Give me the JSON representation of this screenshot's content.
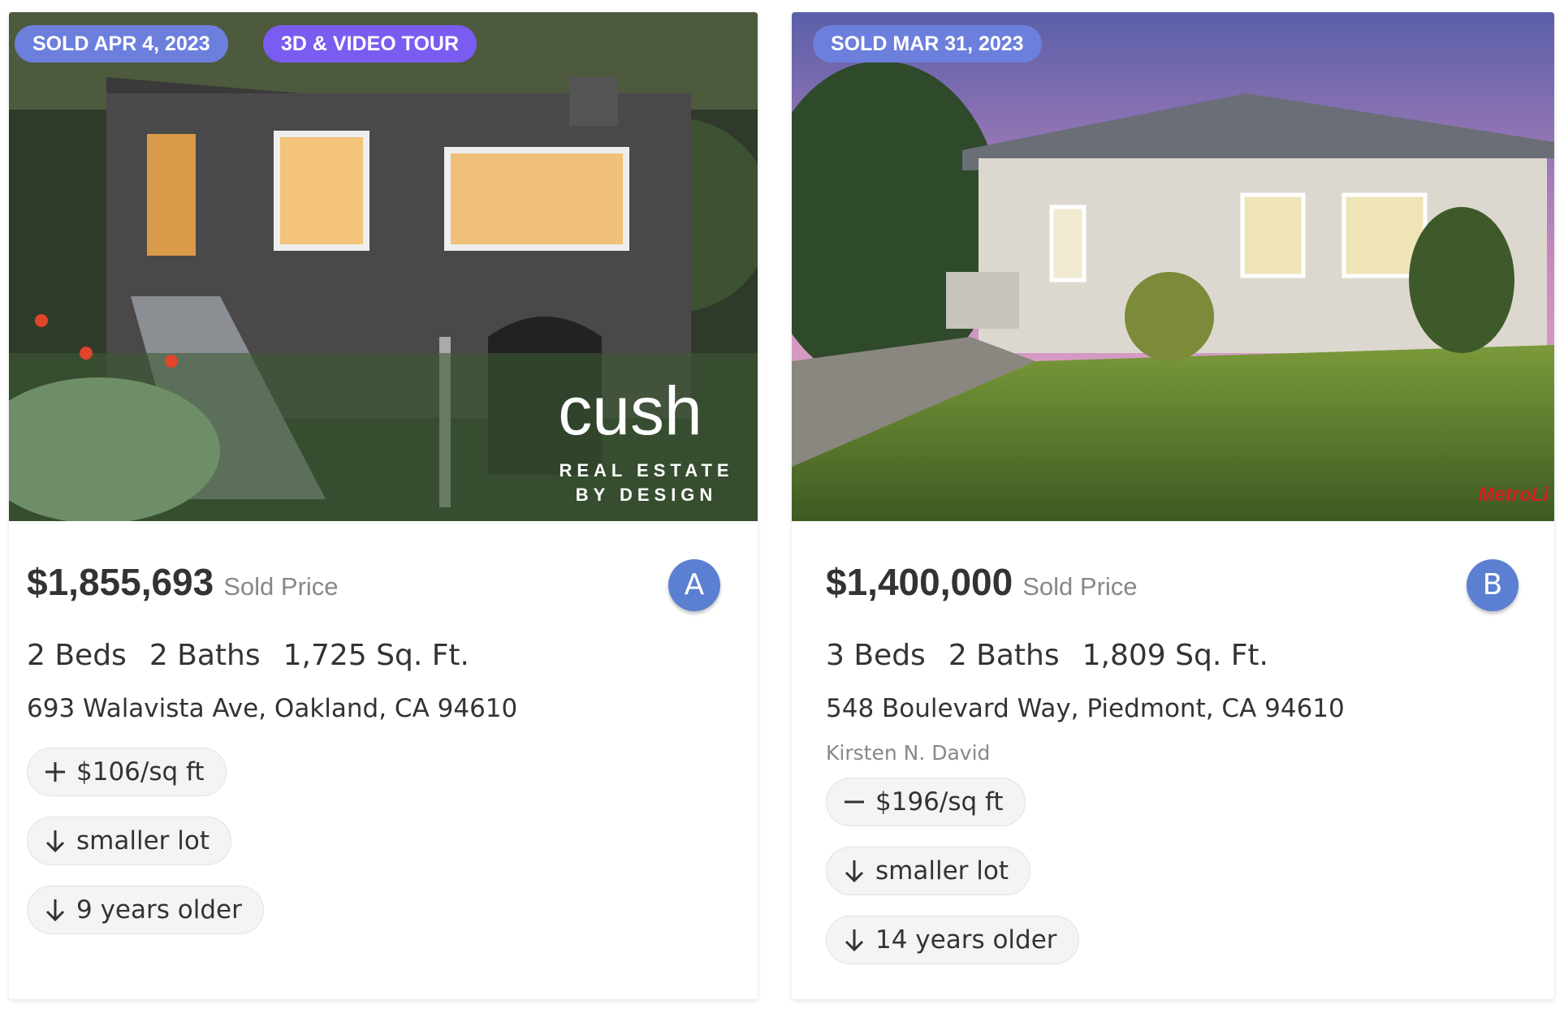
{
  "listings": [
    {
      "badges": [
        "SOLD APR 4, 2023",
        "3D & VIDEO TOUR"
      ],
      "watermark": {
        "logo": "cush",
        "tagline": [
          "REAL ESTATE",
          "BY DESIGN"
        ]
      },
      "price": "$1,855,693",
      "price_label": "Sold Price",
      "marker": "A",
      "beds": "2 Beds",
      "baths": "2 Baths",
      "area": "1,725 Sq. Ft.",
      "address": "693 Walavista Ave, Oakland, CA 94610",
      "comparisons": [
        "$106/sq ft",
        "smaller lot",
        "9 years older"
      ]
    },
    {
      "badges": [
        "SOLD MAR 31, 2023"
      ],
      "watermark": {
        "logo": "MetroLi"
      },
      "price": "$1,400,000",
      "price_label": "Sold Price",
      "marker": "B",
      "beds": "3 Beds",
      "baths": "2 Baths",
      "area": "1,809 Sq. Ft.",
      "address": "548 Boulevard Way, Piedmont, CA 94610",
      "agent": "Kirsten N. David",
      "comparisons": [
        "$196/sq ft",
        "smaller lot",
        "14 years older"
      ]
    }
  ]
}
